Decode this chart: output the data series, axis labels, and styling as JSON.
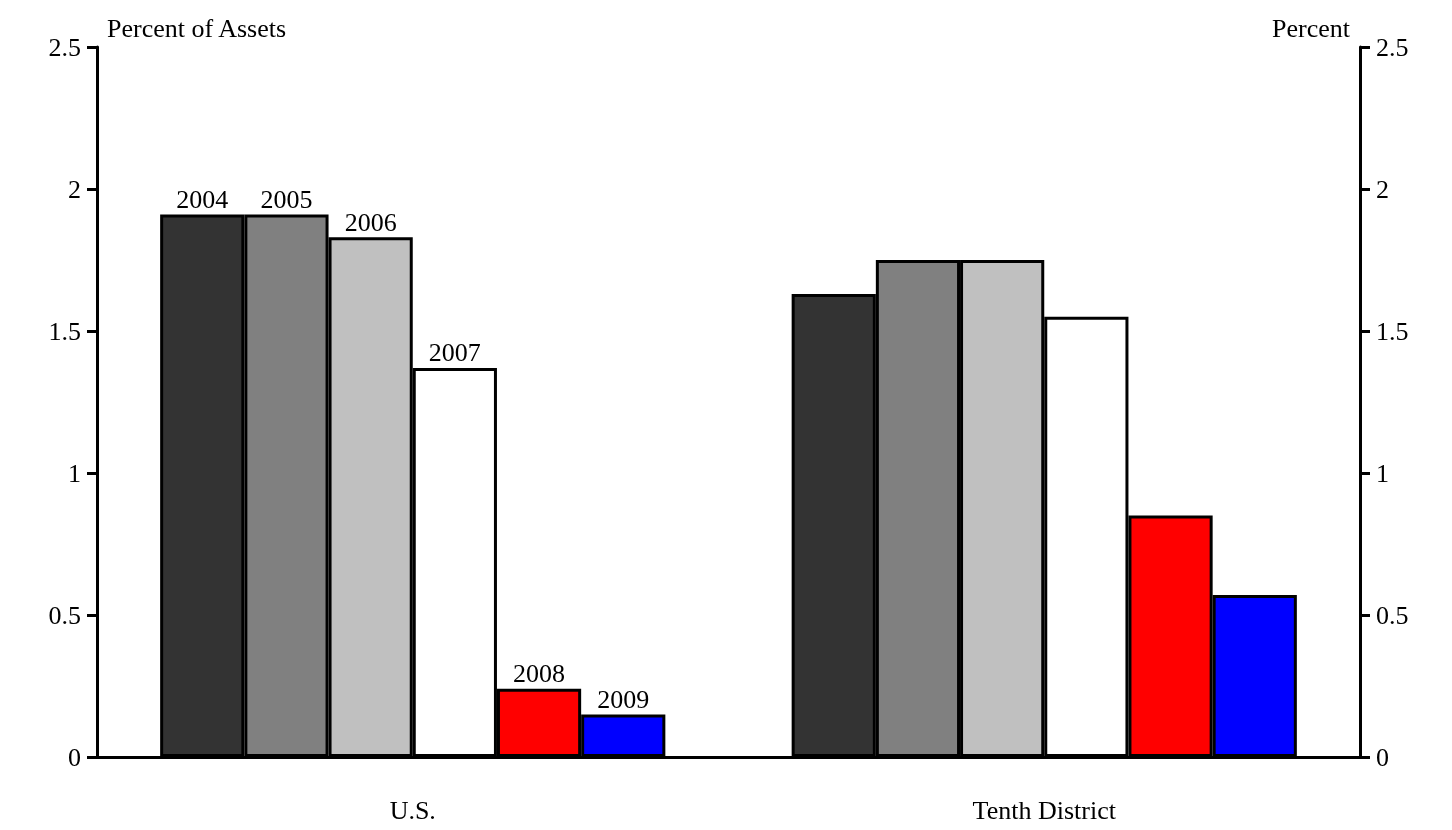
{
  "chart_data": {
    "type": "bar",
    "categories": [
      "U.S.",
      "Tenth District"
    ],
    "series": [
      {
        "name": "2004",
        "color": "#333333",
        "values": [
          1.91,
          1.63
        ]
      },
      {
        "name": "2005",
        "color": "#808080",
        "values": [
          1.91,
          1.75
        ]
      },
      {
        "name": "2006",
        "color": "#c0c0c0",
        "values": [
          1.83,
          1.75
        ]
      },
      {
        "name": "2007",
        "color": "#ffffff",
        "values": [
          1.37,
          1.55
        ]
      },
      {
        "name": "2008",
        "color": "#ff0000",
        "values": [
          0.24,
          0.85
        ]
      },
      {
        "name": "2009",
        "color": "#0000ff",
        "values": [
          0.15,
          0.57
        ]
      }
    ],
    "ylabel": "Percent of Assets",
    "y2label": "Percent",
    "ylim": [
      0,
      2.5
    ],
    "yticks": [
      0,
      0.5,
      1,
      1.5,
      2,
      2.5
    ],
    "y2lim": [
      0,
      2.5
    ],
    "y2ticks": [
      0,
      0.5,
      1,
      1.5,
      2,
      2.5
    ],
    "grid": false,
    "legend": false
  }
}
